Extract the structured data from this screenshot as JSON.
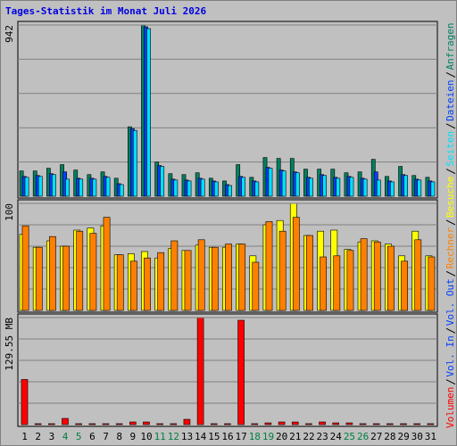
{
  "title": "Tages-Statistik im Monat Juli 2026",
  "chart_data": [
    {
      "type": "bar",
      "ylim": [
        0,
        942
      ],
      "yticks": [
        942
      ],
      "series": [
        {
          "name": "Anfragen",
          "color": "#008060",
          "values": [
            139,
            139,
            154,
            174,
            144,
            119,
            134,
            99,
            382,
            942,
            188,
            124,
            119,
            129,
            99,
            84,
            174,
            104,
            213,
            208,
            208,
            149,
            149,
            149,
            129,
            134,
            203,
            109,
            164,
            114,
            104
          ]
        },
        {
          "name": "Dateien",
          "color": "#0040ff",
          "values": [
            109,
            114,
            124,
            134,
            99,
            99,
            109,
            69,
            372,
            932,
            169,
            94,
            89,
            99,
            84,
            64,
            109,
            84,
            159,
            144,
            134,
            104,
            119,
            104,
            109,
            99,
            134,
            84,
            119,
            94,
            84
          ]
        },
        {
          "name": "Seiten",
          "color": "#00e0ff",
          "values": [
            104,
            109,
            119,
            94,
            94,
            94,
            104,
            64,
            362,
            922,
            164,
            89,
            84,
            94,
            79,
            59,
            104,
            79,
            154,
            139,
            129,
            99,
            114,
            99,
            104,
            94,
            89,
            79,
            114,
            89,
            79
          ]
        }
      ]
    },
    {
      "type": "bar",
      "ylim": [
        0,
        100
      ],
      "yticks": [
        100
      ],
      "series": [
        {
          "name": "Besuche",
          "color": "#ffff00",
          "values": [
            71,
            59,
            65,
            60,
            75,
            77,
            79,
            52,
            53,
            55,
            49,
            58,
            56,
            61,
            59,
            59,
            62,
            51,
            80,
            84,
            100,
            70,
            74,
            75,
            57,
            64,
            65,
            62,
            51,
            74,
            51
          ]
        },
        {
          "name": "Rechner",
          "color": "#ff8000",
          "values": [
            79,
            59,
            69,
            60,
            74,
            72,
            87,
            52,
            46,
            49,
            54,
            65,
            56,
            66,
            59,
            62,
            62,
            45,
            83,
            74,
            87,
            70,
            50,
            51,
            56,
            67,
            64,
            60,
            46,
            66,
            50
          ]
        }
      ]
    },
    {
      "type": "bar",
      "ylim": [
        0,
        129.55
      ],
      "yticks": [
        {
          "value": 129.55,
          "label": "129.55 MB"
        }
      ],
      "categories": [
        "1",
        "2",
        "3",
        "4",
        "5",
        "6",
        "7",
        "8",
        "9",
        "10",
        "11",
        "12",
        "13",
        "14",
        "15",
        "16",
        "17",
        "18",
        "19",
        "20",
        "21",
        "22",
        "23",
        "24",
        "25",
        "26",
        "27",
        "28",
        "29",
        "30",
        "31"
      ],
      "category_colors": [
        "#000000",
        "#000000",
        "#000000",
        "#008040",
        "#008040",
        "#000000",
        "#000000",
        "#000000",
        "#000000",
        "#000000",
        "#008040",
        "#008040",
        "#000000",
        "#000000",
        "#000000",
        "#000000",
        "#000000",
        "#008040",
        "#008040",
        "#000000",
        "#000000",
        "#000000",
        "#000000",
        "#000000",
        "#008040",
        "#008040",
        "#000000",
        "#000000",
        "#000000",
        "#000000",
        "#000000"
      ],
      "series": [
        {
          "name": "Volumen",
          "color": "#ff0000",
          "values": [
            54.6,
            1.1,
            1.1,
            7.5,
            1.1,
            1.1,
            1.1,
            1.1,
            3.2,
            3.2,
            1.1,
            1.1,
            6.4,
            129.55,
            1.1,
            1.1,
            126.3,
            1.1,
            2.1,
            3.2,
            3.2,
            1.1,
            3.2,
            2.1,
            2.1,
            1.1,
            1.1,
            1.1,
            1.1,
            1.1,
            1.1
          ]
        }
      ],
      "legend_only": [
        {
          "name": "Vol. In",
          "color": "#0040ff"
        },
        {
          "name": "Vol. Out",
          "color": "#0040ff"
        }
      ]
    }
  ]
}
